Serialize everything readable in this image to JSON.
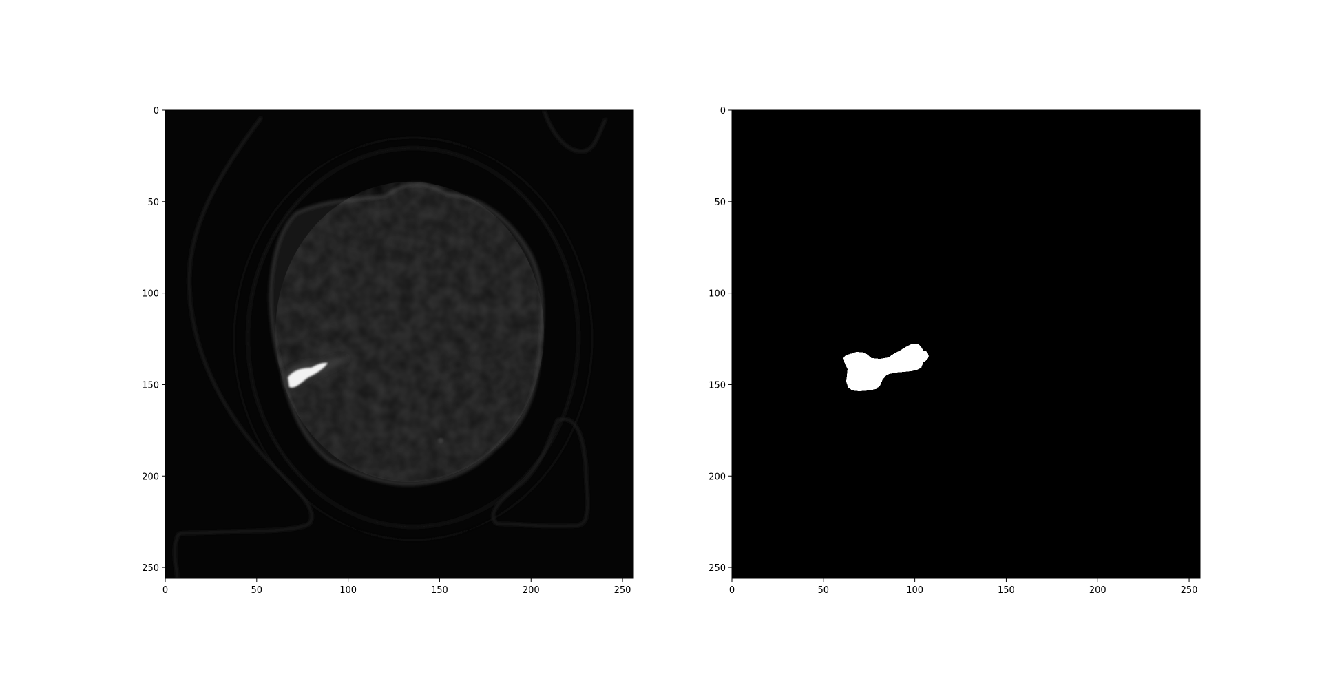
{
  "chart_data": [
    {
      "type": "heatmap",
      "image_kind": "grayscale CT slice",
      "colormap": "gray",
      "title": "",
      "xlabel": "",
      "ylabel": "",
      "xlim": [
        0,
        256
      ],
      "ylim": [
        256,
        0
      ],
      "xticks": [
        0,
        50,
        100,
        150,
        200,
        250
      ],
      "yticks": [
        0,
        50,
        100,
        150,
        200,
        250
      ],
      "xtick_labels": [
        "0",
        "50",
        "100",
        "150",
        "200",
        "250"
      ],
      "ytick_labels": [
        "0",
        "50",
        "100",
        "150",
        "200",
        "250"
      ],
      "grid": false,
      "bright_region": {
        "x_range": [
          63,
          98
        ],
        "y_range": [
          133,
          150
        ]
      }
    },
    {
      "type": "heatmap",
      "image_kind": "binary mask",
      "colormap": "gray",
      "title": "",
      "xlabel": "",
      "ylabel": "",
      "xlim": [
        0,
        256
      ],
      "ylim": [
        256,
        0
      ],
      "xticks": [
        0,
        50,
        100,
        150,
        200,
        250
      ],
      "yticks": [
        0,
        50,
        100,
        150,
        200,
        250
      ],
      "xtick_labels": [
        "0",
        "50",
        "100",
        "150",
        "200",
        "250"
      ],
      "ytick_labels": [
        "0",
        "50",
        "100",
        "150",
        "200",
        "250"
      ],
      "grid": false,
      "mask_region": {
        "x_range": [
          60,
          106
        ],
        "y_range": [
          127,
          153
        ]
      }
    }
  ]
}
